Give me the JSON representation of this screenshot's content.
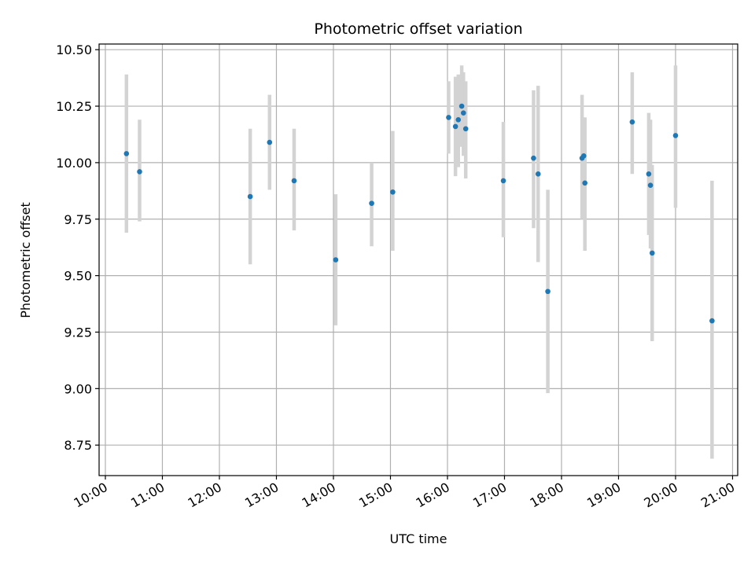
{
  "chart_data": {
    "type": "scatter",
    "title": "Photometric offset variation",
    "xlabel": "UTC time",
    "ylabel": "Photometric offset",
    "x_unit": "hour",
    "xlim": [
      9.89,
      21.09
    ],
    "ylim": [
      8.615,
      10.525
    ],
    "x_ticks": [
      {
        "value": 10,
        "label": "10:00"
      },
      {
        "value": 11,
        "label": "11:00"
      },
      {
        "value": 12,
        "label": "12:00"
      },
      {
        "value": 13,
        "label": "13:00"
      },
      {
        "value": 14,
        "label": "14:00"
      },
      {
        "value": 15,
        "label": "15:00"
      },
      {
        "value": 16,
        "label": "16:00"
      },
      {
        "value": 17,
        "label": "17:00"
      },
      {
        "value": 18,
        "label": "18:00"
      },
      {
        "value": 19,
        "label": "19:00"
      },
      {
        "value": 20,
        "label": "20:00"
      },
      {
        "value": 21,
        "label": "21:00"
      }
    ],
    "y_ticks": [
      {
        "value": 8.75,
        "label": "8.75"
      },
      {
        "value": 9.0,
        "label": "9.00"
      },
      {
        "value": 9.25,
        "label": "9.25"
      },
      {
        "value": 9.5,
        "label": "9.50"
      },
      {
        "value": 9.75,
        "label": "9.75"
      },
      {
        "value": 10.0,
        "label": "10.00"
      },
      {
        "value": 10.25,
        "label": "10.25"
      },
      {
        "value": 10.5,
        "label": "10.50"
      }
    ],
    "grid": true,
    "colors": {
      "point": "#1f77b4",
      "errorbar": "#d3d3d3",
      "grid": "#b0b0b0"
    },
    "points": [
      {
        "time": "10:22",
        "x": 10.37,
        "y": 10.04,
        "ylow": 9.69,
        "yhigh": 10.39
      },
      {
        "time": "10:36",
        "x": 10.6,
        "y": 9.96,
        "ylow": 9.74,
        "yhigh": 10.19
      },
      {
        "time": "12:32",
        "x": 12.54,
        "y": 9.85,
        "ylow": 9.55,
        "yhigh": 10.15
      },
      {
        "time": "12:53",
        "x": 12.88,
        "y": 10.09,
        "ylow": 9.88,
        "yhigh": 10.3
      },
      {
        "time": "13:18",
        "x": 13.31,
        "y": 9.92,
        "ylow": 9.7,
        "yhigh": 10.15
      },
      {
        "time": "14:02",
        "x": 14.04,
        "y": 9.57,
        "ylow": 9.28,
        "yhigh": 9.86
      },
      {
        "time": "14:40",
        "x": 14.67,
        "y": 9.82,
        "ylow": 9.63,
        "yhigh": 10.0
      },
      {
        "time": "15:02",
        "x": 15.04,
        "y": 9.87,
        "ylow": 9.61,
        "yhigh": 10.14
      },
      {
        "time": "16:01",
        "x": 16.02,
        "y": 10.2,
        "ylow": 10.04,
        "yhigh": 10.36
      },
      {
        "time": "16:08",
        "x": 16.14,
        "y": 10.16,
        "ylow": 9.94,
        "yhigh": 10.38
      },
      {
        "time": "16:11",
        "x": 16.19,
        "y": 10.19,
        "ylow": 9.98,
        "yhigh": 10.39
      },
      {
        "time": "16:15",
        "x": 16.25,
        "y": 10.25,
        "ylow": 10.07,
        "yhigh": 10.43
      },
      {
        "time": "16:17",
        "x": 16.28,
        "y": 10.22,
        "ylow": 10.03,
        "yhigh": 10.4
      },
      {
        "time": "16:19",
        "x": 16.32,
        "y": 10.15,
        "ylow": 9.93,
        "yhigh": 10.36
      },
      {
        "time": "16:59",
        "x": 16.98,
        "y": 9.92,
        "ylow": 9.67,
        "yhigh": 10.18
      },
      {
        "time": "17:30",
        "x": 17.51,
        "y": 10.02,
        "ylow": 9.71,
        "yhigh": 10.32
      },
      {
        "time": "17:35",
        "x": 17.59,
        "y": 9.95,
        "ylow": 9.56,
        "yhigh": 10.34
      },
      {
        "time": "17:46",
        "x": 17.76,
        "y": 9.43,
        "ylow": 8.98,
        "yhigh": 9.88
      },
      {
        "time": "18:21",
        "x": 18.36,
        "y": 10.02,
        "ylow": 9.75,
        "yhigh": 10.3
      },
      {
        "time": "18:23",
        "x": 18.39,
        "y": 10.03,
        "ylow": 9.85,
        "yhigh": 10.2
      },
      {
        "time": "18:24",
        "x": 18.41,
        "y": 9.91,
        "ylow": 9.61,
        "yhigh": 10.2
      },
      {
        "time": "19:14",
        "x": 19.24,
        "y": 10.18,
        "ylow": 9.95,
        "yhigh": 10.4
      },
      {
        "time": "19:32",
        "x": 19.53,
        "y": 9.95,
        "ylow": 9.68,
        "yhigh": 10.22
      },
      {
        "time": "19:33",
        "x": 19.56,
        "y": 9.9,
        "ylow": 9.62,
        "yhigh": 10.19
      },
      {
        "time": "19:35",
        "x": 19.59,
        "y": 9.6,
        "ylow": 9.21,
        "yhigh": 9.99
      },
      {
        "time": "20:00",
        "x": 20.0,
        "y": 10.12,
        "ylow": 9.8,
        "yhigh": 10.43
      },
      {
        "time": "20:38",
        "x": 20.64,
        "y": 9.3,
        "ylow": 8.69,
        "yhigh": 9.92
      }
    ]
  }
}
